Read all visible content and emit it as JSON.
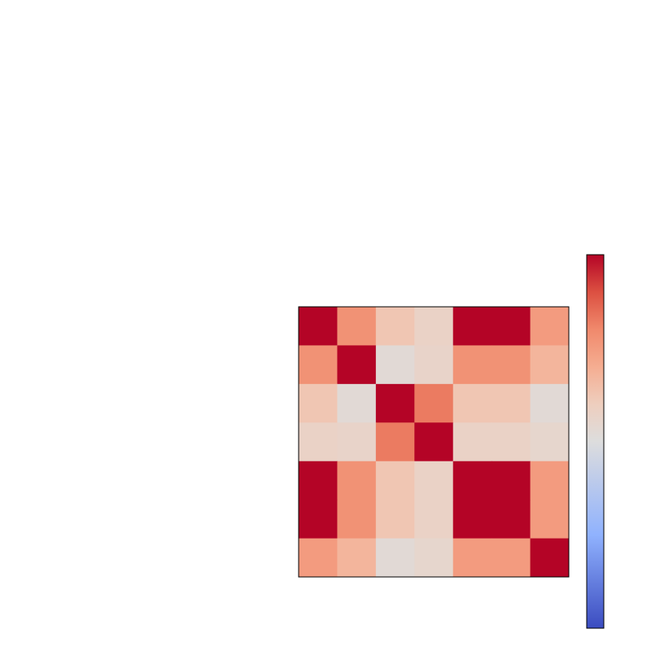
{
  "chart_data": {
    "type": "heatmap",
    "title": "",
    "xlabel": "",
    "ylabel": "",
    "rows": 7,
    "cols": 7,
    "values": [
      [
        1.0,
        0.55,
        0.25,
        0.15,
        1.0,
        1.0,
        0.5
      ],
      [
        0.55,
        1.0,
        0.05,
        0.13,
        0.55,
        0.55,
        0.35
      ],
      [
        0.25,
        0.05,
        1.0,
        0.65,
        0.25,
        0.25,
        0.05
      ],
      [
        0.15,
        0.13,
        0.65,
        1.0,
        0.15,
        0.15,
        0.1
      ],
      [
        1.0,
        0.55,
        0.25,
        0.15,
        1.0,
        1.0,
        0.5
      ],
      [
        1.0,
        0.55,
        0.25,
        0.15,
        1.0,
        1.0,
        0.5
      ],
      [
        0.5,
        0.35,
        0.05,
        0.1,
        0.5,
        0.5,
        1.0
      ]
    ],
    "colormap": "coolwarm",
    "vmin": -1,
    "vmax": 1,
    "colorbar": true,
    "grid": false,
    "colors": {
      "low": "#3b4cc0",
      "mid": "#dddddd",
      "high": "#b40426"
    }
  }
}
